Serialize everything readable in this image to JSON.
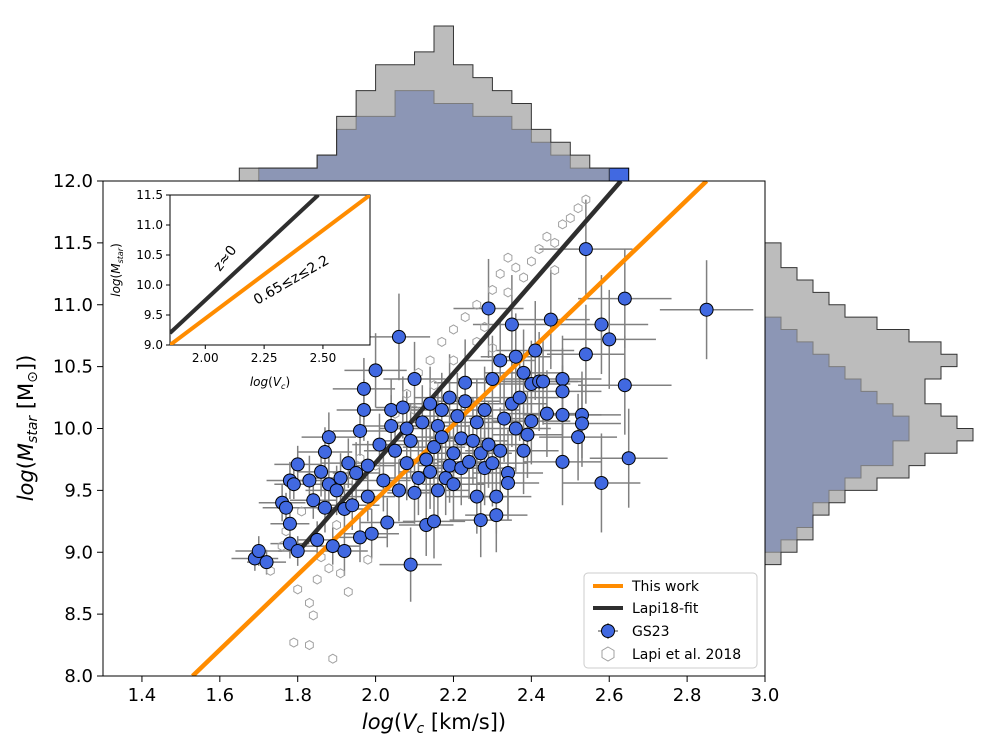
{
  "chart_data": {
    "type": "scatter",
    "title": "",
    "xlabel": "log(V_c [km/s])",
    "ylabel": "log(M_star [M⊙])",
    "xlim": [
      1.3,
      3.0
    ],
    "ylim": [
      8.0,
      12.0
    ],
    "xticks": [
      "1.4",
      "1.6",
      "1.8",
      "2.0",
      "2.2",
      "2.4",
      "2.6",
      "2.8",
      "3.0"
    ],
    "yticks": [
      "8.0",
      "8.5",
      "9.0",
      "9.5",
      "10.0",
      "10.5",
      "11.0",
      "11.5",
      "12.0"
    ],
    "legend": {
      "placement": "lower-right",
      "entries": [
        "This work",
        "Lapi18-fit",
        "GS23",
        "Lapi et al. 2018"
      ]
    },
    "colors": {
      "this_work": "#ff8c00",
      "lapi18_fit": "#2e2e2e",
      "gs23": "#4169e1",
      "lapi2018": "#a0a0a0",
      "hist_gs23": "#4169e1",
      "hist_lapi": "#a6a6a6",
      "errorbar": "#808080"
    },
    "lines": [
      {
        "name": "This work",
        "x": [
          1.53,
          2.85
        ],
        "y": [
          8.0,
          12.0
        ]
      },
      {
        "name": "Lapi18-fit",
        "x": [
          1.8,
          2.63
        ],
        "y": [
          9.0,
          12.0
        ]
      }
    ],
    "series_gs23": [
      [
        1.69,
        8.95,
        0.06,
        0.1
      ],
      [
        1.7,
        9.01,
        0.06,
        0.12
      ],
      [
        1.72,
        8.92,
        0.05,
        0.1
      ],
      [
        1.76,
        9.4,
        0.06,
        0.15
      ],
      [
        1.77,
        9.36,
        0.06,
        0.12
      ],
      [
        1.78,
        9.07,
        0.05,
        0.12
      ],
      [
        1.78,
        9.23,
        0.05,
        0.12
      ],
      [
        1.78,
        9.58,
        0.06,
        0.15
      ],
      [
        1.79,
        9.55,
        0.05,
        0.12
      ],
      [
        1.8,
        9.71,
        0.06,
        0.15
      ],
      [
        1.8,
        9.01,
        0.05,
        0.12
      ],
      [
        1.83,
        9.58,
        0.06,
        0.2
      ],
      [
        1.84,
        9.42,
        0.06,
        0.15
      ],
      [
        1.85,
        9.1,
        0.05,
        0.15
      ],
      [
        1.86,
        9.65,
        0.06,
        0.2
      ],
      [
        1.87,
        9.36,
        0.06,
        0.2
      ],
      [
        1.87,
        9.81,
        0.07,
        0.2
      ],
      [
        1.88,
        9.93,
        0.07,
        0.2
      ],
      [
        1.88,
        9.55,
        0.06,
        0.2
      ],
      [
        1.89,
        9.05,
        0.07,
        0.15
      ],
      [
        1.9,
        9.5,
        0.08,
        0.2
      ],
      [
        1.91,
        9.6,
        0.07,
        0.2
      ],
      [
        1.92,
        9.35,
        0.07,
        0.2
      ],
      [
        1.92,
        9.01,
        0.06,
        0.2
      ],
      [
        1.93,
        9.72,
        0.07,
        0.2
      ],
      [
        1.94,
        9.38,
        0.07,
        0.2
      ],
      [
        1.95,
        9.64,
        0.06,
        0.25
      ],
      [
        1.96,
        9.12,
        0.07,
        0.2
      ],
      [
        1.96,
        9.98,
        0.07,
        0.2
      ],
      [
        1.97,
        10.32,
        0.08,
        0.25
      ],
      [
        1.97,
        10.15,
        0.07,
        0.25
      ],
      [
        1.98,
        9.45,
        0.07,
        0.2
      ],
      [
        1.98,
        9.7,
        0.07,
        0.2
      ],
      [
        1.99,
        9.15,
        0.07,
        0.2
      ],
      [
        2.0,
        10.47,
        0.08,
        0.3
      ],
      [
        2.01,
        9.87,
        0.07,
        0.25
      ],
      [
        2.02,
        9.58,
        0.07,
        0.25
      ],
      [
        2.03,
        9.24,
        0.07,
        0.2
      ],
      [
        2.04,
        10.02,
        0.08,
        0.25
      ],
      [
        2.04,
        10.15,
        0.07,
        0.25
      ],
      [
        2.05,
        9.82,
        0.08,
        0.25
      ],
      [
        2.06,
        9.5,
        0.08,
        0.25
      ],
      [
        2.06,
        10.74,
        0.08,
        0.35
      ],
      [
        2.07,
        10.17,
        0.07,
        0.25
      ],
      [
        2.08,
        9.72,
        0.08,
        0.3
      ],
      [
        2.08,
        10.0,
        0.07,
        0.3
      ],
      [
        2.09,
        8.9,
        0.08,
        0.3
      ],
      [
        2.09,
        9.9,
        0.08,
        0.3
      ],
      [
        2.1,
        10.4,
        0.08,
        0.3
      ],
      [
        2.1,
        9.48,
        0.07,
        0.25
      ],
      [
        2.11,
        9.6,
        0.08,
        0.3
      ],
      [
        2.12,
        10.05,
        0.08,
        0.3
      ],
      [
        2.13,
        9.22,
        0.07,
        0.25
      ],
      [
        2.13,
        9.75,
        0.07,
        0.3
      ],
      [
        2.14,
        10.2,
        0.08,
        0.3
      ],
      [
        2.14,
        9.65,
        0.08,
        0.3
      ],
      [
        2.15,
        9.85,
        0.08,
        0.3
      ],
      [
        2.15,
        9.25,
        0.08,
        0.3
      ],
      [
        2.16,
        9.5,
        0.08,
        0.3
      ],
      [
        2.16,
        10.02,
        0.08,
        0.3
      ],
      [
        2.17,
        9.93,
        0.08,
        0.3
      ],
      [
        2.17,
        10.15,
        0.08,
        0.3
      ],
      [
        2.18,
        9.6,
        0.08,
        0.3
      ],
      [
        2.19,
        9.7,
        0.08,
        0.3
      ],
      [
        2.19,
        10.25,
        0.09,
        0.35
      ],
      [
        2.2,
        9.55,
        0.08,
        0.3
      ],
      [
        2.2,
        9.8,
        0.08,
        0.3
      ],
      [
        2.21,
        10.1,
        0.09,
        0.35
      ],
      [
        2.22,
        9.92,
        0.08,
        0.35
      ],
      [
        2.22,
        9.68,
        0.08,
        0.3
      ],
      [
        2.23,
        10.22,
        0.09,
        0.35
      ],
      [
        2.23,
        10.37,
        0.08,
        0.35
      ],
      [
        2.24,
        9.73,
        0.08,
        0.3
      ],
      [
        2.25,
        9.9,
        0.09,
        0.35
      ],
      [
        2.26,
        10.05,
        0.09,
        0.35
      ],
      [
        2.26,
        9.45,
        0.08,
        0.3
      ],
      [
        2.27,
        9.8,
        0.08,
        0.35
      ],
      [
        2.27,
        9.26,
        0.08,
        0.3
      ],
      [
        2.28,
        9.68,
        0.08,
        0.3
      ],
      [
        2.28,
        10.15,
        0.09,
        0.35
      ],
      [
        2.29,
        10.97,
        0.09,
        0.4
      ],
      [
        2.29,
        9.87,
        0.09,
        0.35
      ],
      [
        2.3,
        9.72,
        0.09,
        0.35
      ],
      [
        2.3,
        10.4,
        0.09,
        0.35
      ],
      [
        2.31,
        9.45,
        0.09,
        0.3
      ],
      [
        2.31,
        9.3,
        0.08,
        0.3
      ],
      [
        2.32,
        10.55,
        0.09,
        0.35
      ],
      [
        2.32,
        9.82,
        0.09,
        0.35
      ],
      [
        2.33,
        10.08,
        0.09,
        0.35
      ],
      [
        2.34,
        9.64,
        0.09,
        0.35
      ],
      [
        2.34,
        9.56,
        0.08,
        0.3
      ],
      [
        2.35,
        10.2,
        0.09,
        0.35
      ],
      [
        2.35,
        10.84,
        0.1,
        0.4
      ],
      [
        2.36,
        10.58,
        0.09,
        0.35
      ],
      [
        2.36,
        10.0,
        0.09,
        0.35
      ],
      [
        2.37,
        10.25,
        0.1,
        0.35
      ],
      [
        2.38,
        9.82,
        0.09,
        0.35
      ],
      [
        2.38,
        10.45,
        0.1,
        0.35
      ],
      [
        2.39,
        9.95,
        0.09,
        0.35
      ],
      [
        2.4,
        10.36,
        0.1,
        0.35
      ],
      [
        2.4,
        10.06,
        0.1,
        0.35
      ],
      [
        2.41,
        10.63,
        0.1,
        0.4
      ],
      [
        2.42,
        10.38,
        0.1,
        0.4
      ],
      [
        2.43,
        10.38,
        0.1,
        0.35
      ],
      [
        2.44,
        10.12,
        0.1,
        0.35
      ],
      [
        2.45,
        10.88,
        0.1,
        0.4
      ],
      [
        2.48,
        10.11,
        0.1,
        0.4
      ],
      [
        2.48,
        10.4,
        0.1,
        0.35
      ],
      [
        2.48,
        10.3,
        0.1,
        0.35
      ],
      [
        2.48,
        9.73,
        0.1,
        0.35
      ],
      [
        2.52,
        9.93,
        0.1,
        0.35
      ],
      [
        2.53,
        10.11,
        0.1,
        0.35
      ],
      [
        2.53,
        10.04,
        0.1,
        0.35
      ],
      [
        2.54,
        11.45,
        0.12,
        0.4
      ],
      [
        2.54,
        10.6,
        0.1,
        0.4
      ],
      [
        2.58,
        10.84,
        0.12,
        0.4
      ],
      [
        2.58,
        9.56,
        0.1,
        0.4
      ],
      [
        2.6,
        10.72,
        0.12,
        0.4
      ],
      [
        2.64,
        11.05,
        0.12,
        0.4
      ],
      [
        2.64,
        10.35,
        0.12,
        0.4
      ],
      [
        2.65,
        9.76,
        0.1,
        0.4
      ],
      [
        2.85,
        10.96,
        0.12,
        0.4
      ]
    ],
    "series_lapi2018": [
      [
        1.73,
        8.85
      ],
      [
        1.76,
        9.05
      ],
      [
        1.77,
        9.17
      ],
      [
        1.79,
        8.27
      ],
      [
        1.8,
        8.7
      ],
      [
        1.81,
        9.33
      ],
      [
        1.83,
        8.25
      ],
      [
        1.83,
        8.59
      ],
      [
        1.84,
        8.49
      ],
      [
        1.85,
        8.78
      ],
      [
        1.86,
        8.96
      ],
      [
        1.88,
        8.87
      ],
      [
        1.89,
        8.14
      ],
      [
        1.9,
        9.22
      ],
      [
        1.91,
        8.83
      ],
      [
        1.93,
        8.68
      ],
      [
        1.93,
        9.4
      ],
      [
        1.95,
        9.57
      ],
      [
        1.96,
        9.76
      ],
      [
        1.98,
        8.94
      ],
      [
        2.0,
        9.7
      ],
      [
        2.02,
        9.84
      ],
      [
        2.05,
        10.12
      ],
      [
        2.08,
        10.28
      ],
      [
        2.11,
        10.45
      ],
      [
        2.14,
        10.55
      ],
      [
        2.17,
        10.7
      ],
      [
        2.2,
        10.8
      ],
      [
        2.23,
        10.9
      ],
      [
        2.26,
        11.0
      ],
      [
        2.28,
        10.82
      ],
      [
        2.3,
        11.12
      ],
      [
        2.32,
        11.25
      ],
      [
        2.34,
        11.1
      ],
      [
        2.36,
        11.3
      ],
      [
        2.38,
        11.22
      ],
      [
        2.4,
        11.35
      ],
      [
        2.42,
        11.45
      ],
      [
        2.44,
        11.55
      ],
      [
        2.46,
        11.5
      ],
      [
        2.48,
        11.65
      ],
      [
        2.5,
        11.7
      ],
      [
        2.52,
        11.78
      ],
      [
        2.54,
        11.85
      ],
      [
        2.46,
        11.28
      ],
      [
        2.34,
        11.38
      ],
      [
        2.3,
        10.65
      ],
      [
        2.26,
        10.7
      ],
      [
        2.2,
        10.55
      ],
      [
        2.15,
        10.35
      ],
      [
        2.1,
        10.15
      ],
      [
        2.05,
        10.02
      ]
    ],
    "hist_top": {
      "edges": [
        1.5,
        1.55,
        1.6,
        1.65,
        1.7,
        1.75,
        1.8,
        1.85,
        1.9,
        1.95,
        2.0,
        2.05,
        2.1,
        2.15,
        2.2,
        2.25,
        2.3,
        2.35,
        2.4,
        2.45,
        2.5,
        2.55,
        2.6,
        2.65,
        2.7,
        2.75,
        2.8,
        2.85
      ],
      "gs23": [
        0,
        0,
        0,
        0,
        1,
        1,
        1,
        2,
        4,
        5,
        5,
        7,
        7,
        6,
        6,
        5,
        5,
        4,
        3,
        2,
        1,
        1,
        1,
        0,
        0,
        0,
        0
      ],
      "lapi": [
        0,
        0,
        0,
        1,
        1,
        1,
        1,
        2,
        5,
        7,
        9,
        9,
        10,
        12,
        9,
        8,
        7,
        6,
        4,
        3,
        2,
        1,
        0,
        0,
        0,
        0,
        0
      ]
    },
    "hist_right": {
      "edges": [
        8.0,
        8.1,
        8.2,
        8.3,
        8.4,
        8.5,
        8.6,
        8.7,
        8.8,
        8.9,
        9.0,
        9.1,
        9.2,
        9.3,
        9.4,
        9.5,
        9.6,
        9.7,
        9.8,
        9.9,
        10.0,
        10.1,
        10.2,
        10.3,
        10.4,
        10.5,
        10.6,
        10.7,
        10.8,
        10.9,
        11.0,
        11.1,
        11.2,
        11.3,
        11.4,
        11.5,
        11.6,
        11.7,
        11.8,
        11.9,
        12.0
      ],
      "gs23": [
        0,
        0,
        0,
        0,
        0,
        0,
        0,
        0,
        0,
        0,
        1,
        2,
        3,
        3,
        4,
        5,
        6,
        8,
        8,
        9,
        9,
        8,
        7,
        6,
        5,
        4,
        3,
        2,
        1,
        0,
        0,
        0,
        0,
        0,
        0,
        0,
        0,
        0,
        0,
        0
      ],
      "lapi": [
        0,
        0,
        0,
        0,
        0,
        0,
        0,
        0,
        0,
        1,
        2,
        3,
        3,
        4,
        5,
        7,
        9,
        10,
        12,
        13,
        12,
        11,
        10,
        10,
        11,
        12,
        11,
        9,
        7,
        5,
        4,
        3,
        2,
        1,
        1,
        0,
        0,
        0,
        0,
        0
      ]
    },
    "inset": {
      "xlabel": "log(V_c)",
      "ylabel": "log(M_star)",
      "xlim": [
        1.85,
        2.7
      ],
      "ylim": [
        9.0,
        11.5
      ],
      "xticks": [
        "2.00",
        "2.25",
        "2.50"
      ],
      "yticks": [
        "9.0",
        "9.5",
        "10.0",
        "10.5",
        "11.0",
        "11.5"
      ],
      "lines": [
        {
          "name": "z≈0",
          "x": [
            1.85,
            2.48
          ],
          "y": [
            9.2,
            11.5
          ]
        },
        {
          "name": "0.65≤z≤2.2",
          "x": [
            1.85,
            2.7
          ],
          "y": [
            9.0,
            11.5
          ]
        }
      ],
      "annotations": [
        "z≈0",
        "0.65≤z≤2.2"
      ]
    }
  }
}
